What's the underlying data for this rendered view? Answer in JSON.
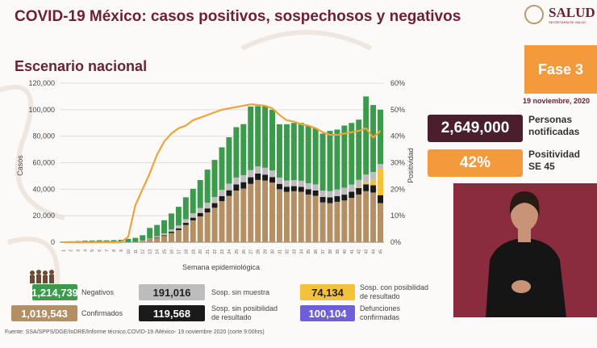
{
  "header": {
    "title": "COVID-19 México: casos positivos, sospechosos y negativos",
    "logo_text": "SALUD",
    "logo_sub": "SECRETARÍA DE SALUD"
  },
  "subtitle": "Escenario nacional",
  "phase": "Fase 3",
  "date": "19 noviembre, 2020",
  "stats": {
    "notified_value": "2,649,000",
    "notified_label_1": "Personas",
    "notified_label_2": "notificadas",
    "positivity_value": "42%",
    "positivity_label_1": "Positividad",
    "positivity_label_2": "SE 45"
  },
  "legend": {
    "negativos_value": "1,214,739",
    "negativos_label": "Negativos",
    "sosp_sin_muestra_value": "191,016",
    "sosp_sin_muestra_label": "Sosp. sin muestra",
    "sosp_posibilidad_value": "74,134",
    "sosp_posibilidad_label_1": "Sosp. con posibilidad",
    "sosp_posibilidad_label_2": "de resultado",
    "confirmados_value": "1,019,543",
    "confirmados_label": "Confirmados",
    "sosp_sin_posibilidad_value": "119,568",
    "sosp_sin_posibilidad_label_1": "Sosp. sin posibilidad",
    "sosp_sin_posibilidad_label_2": "de resultado",
    "defunciones_value": "100,104",
    "defunciones_label_1": "Defunciones",
    "defunciones_label_2": "confirmadas"
  },
  "source": "Fuente: SSA/SPPS/DGE/InDRE/Informe técnico.COVID-19 /México- 19 noviembre 2020 (corte 9:00hrs)",
  "colors": {
    "maroon": "#6d1f33",
    "orange": "#f29a3c",
    "green": "#3c9a4d",
    "tan": "#b38f63",
    "black": "#1a1a1a",
    "gray": "#bdbdbd",
    "yellow": "#f3c23a",
    "line": "#eda43a",
    "purple": "#6f5fd6"
  },
  "chart_data": {
    "type": "bar",
    "stacked": true,
    "xlabel": "Semana epidemiológica",
    "ylabel": "Casos",
    "y2label": "Positividad",
    "ylim": [
      0,
      120000
    ],
    "y2lim": [
      0,
      60
    ],
    "yticks": [
      "0",
      "20,000",
      "40,000",
      "60,000",
      "80,000",
      "100,000",
      "120,000"
    ],
    "y2ticks": [
      "0%",
      "10%",
      "20%",
      "30%",
      "40%",
      "50%",
      "60%"
    ],
    "categories": [
      "1",
      "2",
      "3",
      "4",
      "5",
      "6",
      "7",
      "8",
      "9",
      "10",
      "11",
      "12",
      "13",
      "14",
      "15",
      "16",
      "17",
      "18",
      "19",
      "20",
      "21",
      "22",
      "23",
      "24",
      "25",
      "26",
      "27",
      "28",
      "29",
      "30",
      "31",
      "32",
      "33",
      "34",
      "35",
      "36",
      "37",
      "38",
      "39",
      "40",
      "41",
      "42",
      "43",
      "44",
      "45"
    ],
    "series": [
      {
        "name": "Confirmados",
        "color": "#b38f63",
        "values": [
          0,
          0,
          0,
          0,
          0,
          0,
          0,
          0,
          0,
          50,
          300,
          1000,
          2000,
          3200,
          4700,
          7000,
          9200,
          13000,
          16500,
          19500,
          22500,
          26000,
          31000,
          35000,
          39000,
          40500,
          44000,
          47000,
          46500,
          45000,
          40000,
          38000,
          38500,
          38000,
          36000,
          35000,
          30000,
          29500,
          30500,
          31500,
          33500,
          36000,
          38500,
          37500,
          29500
        ]
      },
      {
        "name": "Sosp. sin posibilidad de resultado",
        "color": "#1a1a1a",
        "values": [
          0,
          0,
          0,
          0,
          0,
          0,
          0,
          0,
          0,
          0,
          0,
          0,
          200,
          400,
          600,
          900,
          1200,
          1600,
          2000,
          2600,
          3000,
          3500,
          3800,
          4200,
          4600,
          4800,
          5000,
          4800,
          4500,
          4200,
          4000,
          3900,
          3800,
          3800,
          3900,
          4000,
          4200,
          4300,
          4300,
          4400,
          4600,
          4900,
          5200,
          5500,
          6000
        ]
      },
      {
        "name": "Sosp. con posibilidad de resultado",
        "color": "#f3c23a",
        "values": [
          0,
          0,
          0,
          0,
          0,
          0,
          0,
          0,
          0,
          0,
          0,
          0,
          0,
          0,
          0,
          0,
          0,
          0,
          0,
          0,
          0,
          0,
          0,
          0,
          0,
          0,
          0,
          0,
          0,
          0,
          0,
          0,
          0,
          0,
          0,
          0,
          0,
          0,
          0,
          0,
          0,
          500,
          1500,
          4000,
          20000
        ]
      },
      {
        "name": "Sosp. sin muestra",
        "color": "#bdbdbd",
        "values": [
          0,
          0,
          0,
          0,
          0,
          0,
          0,
          0,
          0,
          0,
          0,
          300,
          600,
          900,
          1300,
          1800,
          2300,
          2800,
          3300,
          3800,
          4300,
          4600,
          4800,
          5000,
          5200,
          5300,
          5400,
          5400,
          5200,
          5000,
          4800,
          4700,
          4600,
          4600,
          4600,
          4600,
          4700,
          4800,
          5000,
          5200,
          5400,
          5600,
          5800,
          6000,
          3500
        ]
      },
      {
        "name": "Negativos",
        "color": "#3c9a4d",
        "values": [
          400,
          700,
          900,
          1200,
          1300,
          1500,
          1400,
          1600,
          1800,
          2500,
          3000,
          4000,
          8000,
          8500,
          10000,
          12000,
          14000,
          16500,
          18500,
          21000,
          25000,
          28000,
          32000,
          35000,
          38000,
          38500,
          48000,
          45500,
          46800,
          45800,
          40200,
          42400,
          43100,
          43600,
          43500,
          42400,
          43100,
          45400,
          45200,
          46900,
          46500,
          45500,
          59000,
          50500,
          41000
        ]
      }
    ],
    "line": {
      "name": "Positividad",
      "color": "#eda43a",
      "values": [
        0,
        0,
        0,
        0,
        0,
        0,
        0,
        0,
        0,
        2,
        14,
        20,
        26,
        33,
        38,
        41,
        43,
        44,
        46,
        47,
        48,
        49,
        50,
        50.5,
        51,
        51.5,
        52,
        51.8,
        51.5,
        50.5,
        48,
        46,
        45.5,
        44.5,
        44,
        43,
        41.5,
        40.5,
        40.5,
        41,
        41.5,
        42,
        43,
        39.5,
        42
      ]
    }
  }
}
